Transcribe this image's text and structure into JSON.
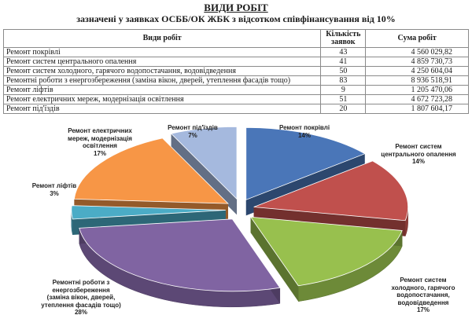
{
  "header": {
    "title": "ВИДИ РОБІТ",
    "subtitle": "зазначені у заявках ОСББ/ОК ЖБК з відсотком співфінансування від 10%"
  },
  "table": {
    "headers": [
      "Види робіт",
      "Кількість заявок",
      "Сума робіт"
    ],
    "rows": [
      {
        "work": "Ремонт покрівлі",
        "count": "43",
        "sum": "4 560 029,82"
      },
      {
        "work": "Ремонт систем центрального опалення",
        "count": "41",
        "sum": "4 859 730,73"
      },
      {
        "work": "Ремонт систем холодного, гарячого водопостачання, водовідведення",
        "count": "50",
        "sum": "4 250 604,04"
      },
      {
        "work": "Ремонтні роботи з енергозбереження (заміна вікон, дверей, утеплення фасадів тощо)",
        "count": "83",
        "sum": "8 936 518,91"
      },
      {
        "work": "Ремонт ліфтів",
        "count": "9",
        "sum": "1 205 470,06"
      },
      {
        "work": "Ремонт електричних мереж, модернізація освітлення",
        "count": "51",
        "sum": "4 672 723,28"
      },
      {
        "work": "Ремонт під'їздів",
        "count": "20",
        "sum": "1 807 604,17"
      }
    ]
  },
  "chart_data": {
    "type": "pie",
    "title": "",
    "slices": [
      {
        "label": "Ремонт покрівлі",
        "percent": "14%",
        "value": 14,
        "color": "#4a76b8"
      },
      {
        "label": "Ремонт систем центрального опалення",
        "percent": "14%",
        "value": 14,
        "color": "#c0504d"
      },
      {
        "label": "Ремонт систем холодного, гарячого водопостачання, водовідведення",
        "percent": "17%",
        "value": 17,
        "color": "#98c04e"
      },
      {
        "label": "Ремонтні роботи з енергозбереження (заміна вікон, дверей, утеплення фасадів тощо)",
        "percent": "28%",
        "value": 28,
        "color": "#8064a2"
      },
      {
        "label": "Ремонт ліфтів",
        "percent": "3%",
        "value": 3,
        "color": "#4bacc6"
      },
      {
        "label": "Ремонт електричних мереж, модернізація освітлення",
        "percent": "17%",
        "value": 17,
        "color": "#f79646"
      },
      {
        "label": "Ремонт під'їздів",
        "percent": "7%",
        "value": 7,
        "color": "#a5b9de"
      }
    ],
    "label_lines": [
      [
        "Ремонт покрівлі"
      ],
      [
        "Ремонт систем",
        "центрального опалення"
      ],
      [
        "Ремонт систем",
        "холодного, гарячого",
        "водопостачання,",
        "водовідведення"
      ],
      [
        "Ремонтні роботи з",
        "енергозбереження",
        "(заміна вікон, дверей,",
        "утеплення фасадів тощо)"
      ],
      [
        "Ремонт ліфтів"
      ],
      [
        "Ремонт електричних",
        "мереж, модернізація",
        "освітлення"
      ],
      [
        "Ремонт під'їздів"
      ]
    ]
  }
}
